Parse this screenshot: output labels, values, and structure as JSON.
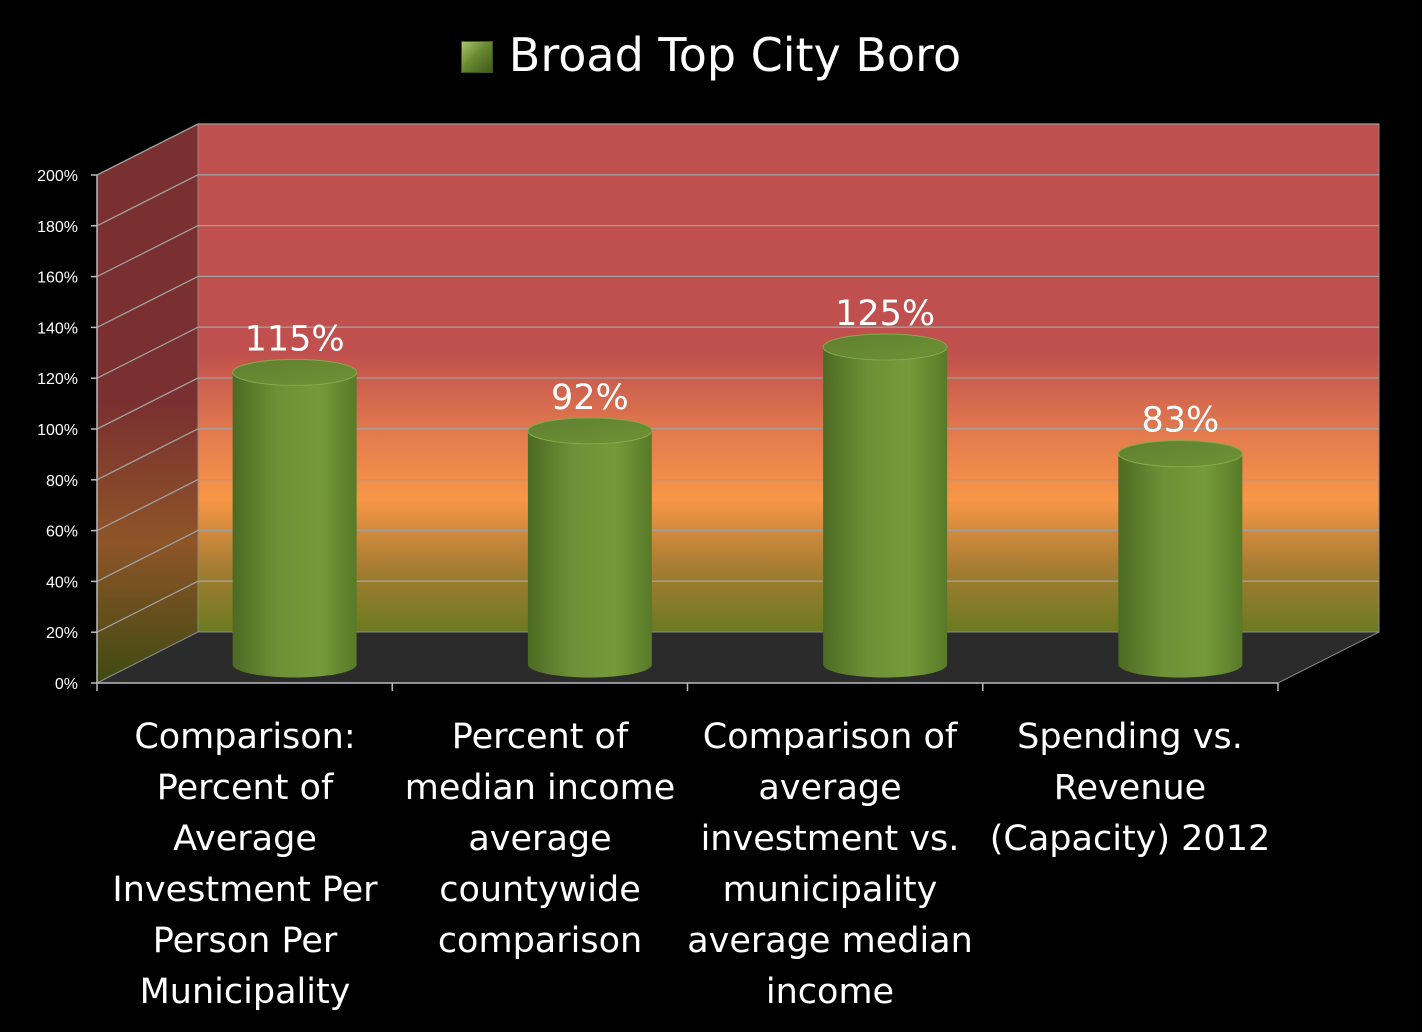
{
  "chart_data": {
    "type": "bar",
    "series": [
      {
        "name": "Broad Top City Boro",
        "values": [
          115,
          92,
          125,
          83
        ]
      }
    ],
    "categories": [
      "Comparison: Percent of Average Investment Per Person Per Municipality",
      "Percent of median income average countywide comparison",
      "Comparison of average investment vs. municipality average median income",
      "Spending vs. Revenue (Capacity) 2012"
    ],
    "data_labels": [
      "115%",
      "92%",
      "125%",
      "83%"
    ],
    "yticks": [
      "0%",
      "20%",
      "40%",
      "60%",
      "80%",
      "100%",
      "120%",
      "140%",
      "160%",
      "180%",
      "200%"
    ],
    "ylim": [
      0,
      200
    ],
    "legend": "top",
    "grid": true,
    "colors": {
      "bar": "#6b8a33",
      "wall_top": "#c0504d",
      "wall_mid": "#f79646",
      "wall_bottom": "#6b7a20",
      "floor": "#2b2b2b"
    }
  }
}
